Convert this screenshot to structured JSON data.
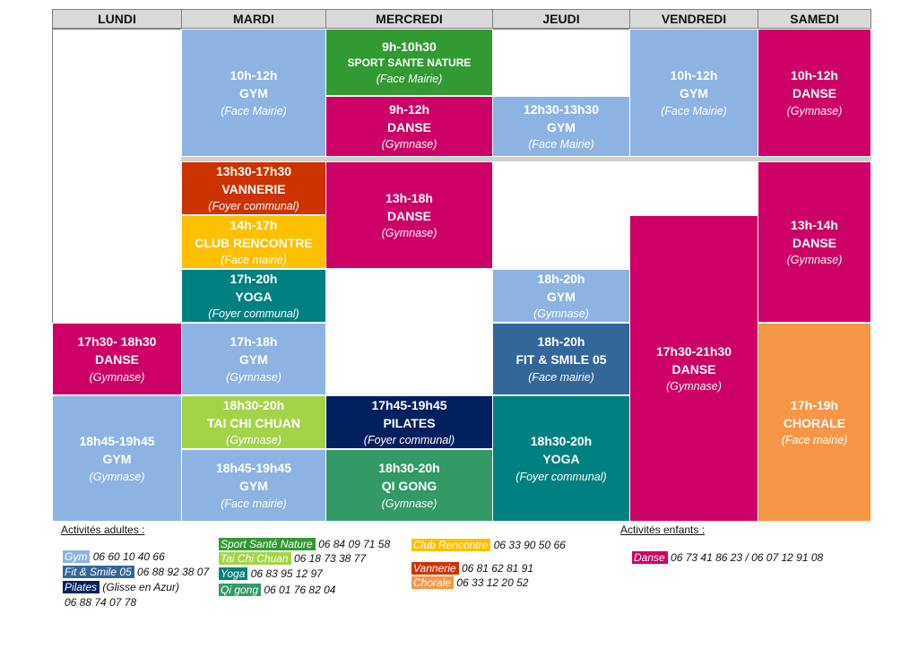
{
  "days": [
    "LUNDI",
    "MARDI",
    "MERCREDI",
    "JEUDI",
    "VENDREDI",
    "SAMEDI"
  ],
  "colors": {
    "gym": "#8db3e2",
    "danse": "#cc0066",
    "vannerie": "#cc3300",
    "club": "#ffc000",
    "yoga": "#008080",
    "taichi": "#a4d34a",
    "sport": "#339933",
    "pilates": "#002060",
    "qigong": "#339966",
    "fit": "#336699",
    "chorale": "#f79646"
  },
  "blocks": [
    {
      "time": "17h30- 18h30",
      "name": "DANSE",
      "place": "(Gymnase)"
    },
    {
      "time": "18h45-19h45",
      "name": "GYM",
      "place": "(Gymnase)"
    },
    {
      "time": "10h-12h",
      "name": "GYM",
      "place": "(Face Mairie)"
    },
    {
      "time": "13h30-17h30",
      "name": "VANNERIE",
      "place": "(Foyer communal)"
    },
    {
      "time": "14h-17h",
      "name": "CLUB RENCONTRE",
      "place": "(Face mairie)"
    },
    {
      "time": "17h-20h",
      "name": "YOGA",
      "place": "(Foyer communal)"
    },
    {
      "time": "17h-18h",
      "name": "GYM",
      "place": "(Gymnase)"
    },
    {
      "time": "18h30-20h",
      "name": "TAI CHI CHUAN",
      "place": "(Gymnase)"
    },
    {
      "time": "18h45-19h45",
      "name": "GYM",
      "place": "(Face mairie)"
    },
    {
      "time": "9h-10h30",
      "name": "SPORT SANTE NATURE",
      "place": "(Face Mairie)"
    },
    {
      "time": "9h-12h",
      "name": "DANSE",
      "place": "(Gymnase)"
    },
    {
      "time": "13h-18h",
      "name": "DANSE",
      "place": "(Gymnase)"
    },
    {
      "time": "17h45-19h45",
      "name": "PILATES",
      "place": "(Foyer communal)"
    },
    {
      "time": "18h30-20h",
      "name": "QI GONG",
      "place": "(Gymnase)"
    },
    {
      "time": "12h30-13h30",
      "name": "GYM",
      "place": "(Face Mairie)"
    },
    {
      "time": "18h-20h",
      "name": "GYM",
      "place": "(Gymnase)"
    },
    {
      "time": "18h-20h",
      "name": "FIT & SMILE 05",
      "place": "(Face mairie)"
    },
    {
      "time": "18h30-20h",
      "name": "YOGA",
      "place": "(Foyer communal)"
    },
    {
      "time": "10h-12h",
      "name": "GYM",
      "place": "(Face Mairie)"
    },
    {
      "time": "17h30-21h30",
      "name": "DANSE",
      "place": "(Gymnase)"
    },
    {
      "time": "10h-12h",
      "name": "DANSE",
      "place": "(Gymnase)"
    },
    {
      "time": "13h-14h",
      "name": "DANSE",
      "place": "(Gymnase)"
    },
    {
      "time": "17h-19h",
      "name": "CHORALE",
      "place": "(Face mairie)"
    }
  ],
  "legend": {
    "adults_title": "Activités adultes :",
    "children_title": "Activités enfants :",
    "items": [
      {
        "label": "Gym",
        "phone": "06 60 10 40 66"
      },
      {
        "label": "Fit & Smile 05",
        "phone": "06 88 92 38 07"
      },
      {
        "label": "Pilates",
        "phone": "(Glisse en Azur)"
      },
      {
        "label": "",
        "phone": "06 88 74 07 78"
      },
      {
        "label": "Sport Santé Nature",
        "phone": "06 84 09 71 58"
      },
      {
        "label": "Tai Chi Chuan",
        "phone": "06 18 73 38 77"
      },
      {
        "label": "Yoga",
        "phone": "06 83 95 12 97"
      },
      {
        "label": "Qi gong",
        "phone": "06 01 76 82 04"
      },
      {
        "label": "Club Rencontre",
        "phone": "06 33 90 50 66"
      },
      {
        "label": "Vannerie",
        "phone": "06 81 62 81 91"
      },
      {
        "label": "Chorale",
        "phone": "06 33 12 20 52"
      },
      {
        "label": "Danse",
        "phone": "06 73 41 86 23 / 06 07 12 91 08"
      }
    ]
  }
}
